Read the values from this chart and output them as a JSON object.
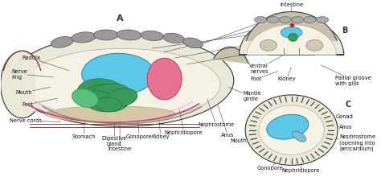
{
  "bg_color": "#ffffff",
  "lc": "#333333",
  "fs": 4.8,
  "section_A": "A",
  "section_B": "B",
  "section_C": "C",
  "body_fill": "#ece8d8",
  "inner_fill": "#f5f2e5",
  "gonad_blue": "#5bc8e8",
  "peri_pink": "#e87090",
  "digest_green": "#3a9a5c",
  "shell_gray": "#888888",
  "nerve_pink": "#cc4488",
  "foot_tan": "#d4c8a0"
}
